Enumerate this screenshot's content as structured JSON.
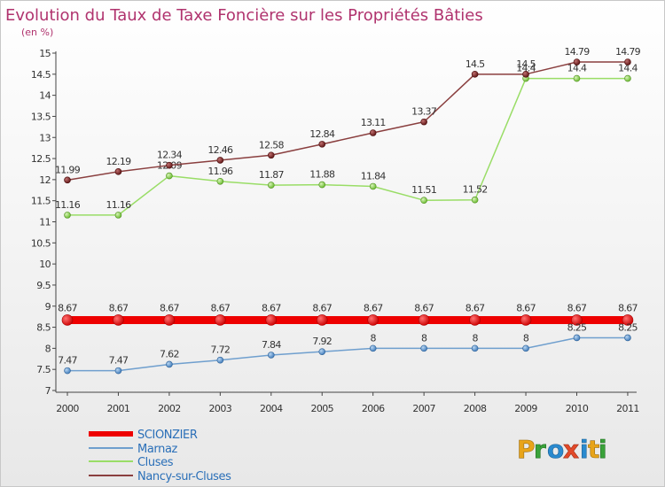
{
  "chart_data": {
    "type": "line",
    "title": "Evolution du Taux de Taxe Foncière sur les Propriétés Bâties",
    "subtitle": "(en %)",
    "categories": [
      "2000",
      "2001",
      "2002",
      "2003",
      "2004",
      "2005",
      "2006",
      "2007",
      "2008",
      "2009",
      "2010",
      "2011"
    ],
    "y_ticks": [
      "7",
      "7.5",
      "8",
      "8.5",
      "9",
      "9.5",
      "10",
      "10.5",
      "11",
      "11.5",
      "12",
      "12.5",
      "13",
      "13.5",
      "14",
      "14.5",
      "15"
    ],
    "ylim": [
      7,
      15
    ],
    "grid": false,
    "legend_position": "bottom-left",
    "series": [
      {
        "name": "SCIONZIER",
        "color": "#ee0000",
        "values": [
          8.67,
          8.67,
          8.67,
          8.67,
          8.67,
          8.67,
          8.67,
          8.67,
          8.67,
          8.67,
          8.67,
          8.67
        ],
        "labels": [
          "8.67",
          "8.67",
          "8.67",
          "8.67",
          "8.67",
          "8.67",
          "8.67",
          "8.67",
          "8.67",
          "8.67",
          "8.67",
          "8.67"
        ]
      },
      {
        "name": "Marnaz",
        "color": "#6f9fce",
        "values": [
          7.47,
          7.47,
          7.62,
          7.72,
          7.84,
          7.92,
          8,
          8,
          8,
          8,
          8.25,
          8.25
        ],
        "labels": [
          "7.47",
          "7.47",
          "7.62",
          "7.72",
          "7.84",
          "7.92",
          "8",
          "8",
          "8",
          "8",
          "8.25",
          "8.25"
        ]
      },
      {
        "name": "Cluses",
        "color": "#99dd66",
        "values": [
          11.16,
          11.16,
          12.09,
          11.96,
          11.87,
          11.88,
          11.84,
          11.51,
          11.52,
          14.4,
          14.4,
          14.4
        ],
        "labels": [
          "11.16",
          "11.16",
          "12.09",
          "11.96",
          "11.87",
          "11.88",
          "11.84",
          "11.51",
          "11.52",
          "14.4",
          "14.4",
          "14.4"
        ]
      },
      {
        "name": "Nancy-sur-Cluses",
        "color": "#8a3f3f",
        "values": [
          11.99,
          12.19,
          12.34,
          12.46,
          12.58,
          12.84,
          13.11,
          13.37,
          14.5,
          14.5,
          14.79,
          14.79
        ],
        "labels": [
          "11.99",
          "12.19",
          "12.34",
          "12.46",
          "12.58",
          "12.84",
          "13.11",
          "13.37",
          "14.5",
          "14.5",
          "14.79",
          "14.79"
        ]
      }
    ]
  },
  "logo": {
    "text": "Proxiti"
  }
}
